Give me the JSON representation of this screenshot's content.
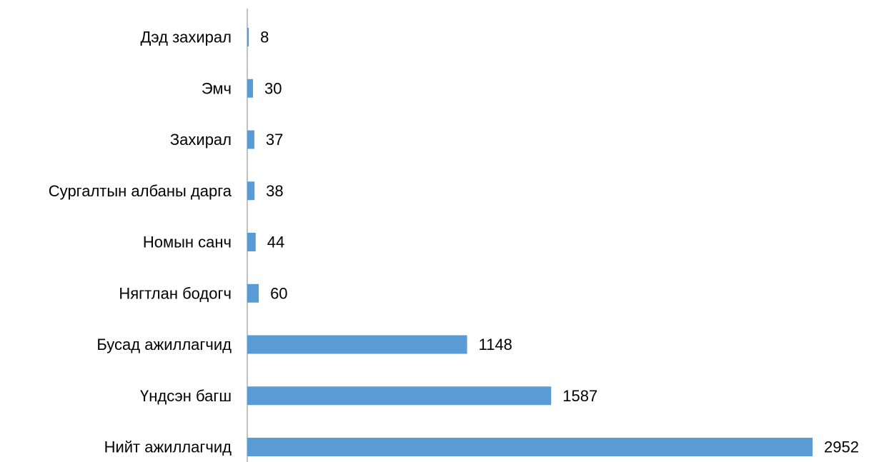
{
  "chart_data": {
    "type": "bar",
    "orientation": "horizontal",
    "categories": [
      "Дэд захирал",
      "Эмч",
      "Захирал",
      "Сургалтын албаны дарга",
      "Номын санч",
      "Нягтлан бодогч",
      "Бусад ажиллагчид",
      "Үндсэн багш",
      "Нийт ажиллагчид"
    ],
    "values": [
      8,
      30,
      37,
      38,
      44,
      60,
      1148,
      1587,
      2952
    ],
    "value_labels": [
      "8",
      "30",
      "37",
      "38",
      "44",
      "60",
      "1148",
      "1587",
      "2952"
    ],
    "title": "",
    "xlabel": "",
    "ylabel": "",
    "xlim": [
      0,
      2952
    ],
    "grid": false,
    "legend": "none",
    "colors": {
      "bar": "#5B9BD5",
      "axis": "#868686",
      "text": "#000000"
    }
  }
}
